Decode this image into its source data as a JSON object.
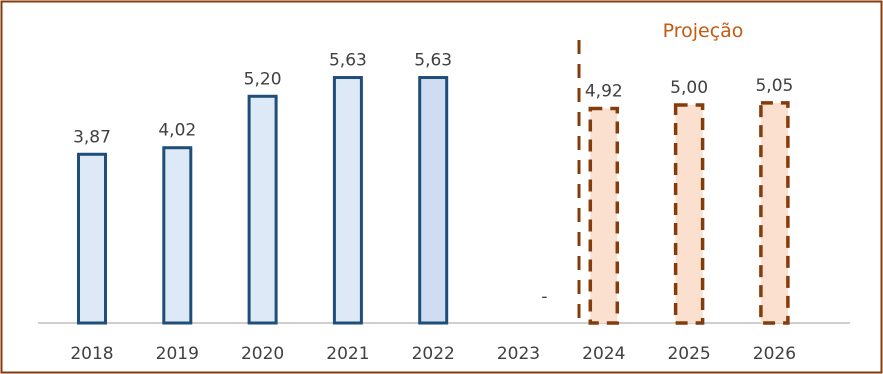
{
  "chart_data": {
    "type": "bar",
    "categories": [
      "2018",
      "2019",
      "2020",
      "2021",
      "2022",
      "2023",
      "2024",
      "2025",
      "2026"
    ],
    "values": [
      3.87,
      4.02,
      5.2,
      5.63,
      5.63,
      null,
      4.92,
      5.0,
      5.05
    ],
    "value_labels": [
      "3,87",
      "4,02",
      "5,20",
      "5,63",
      "5,63",
      "-",
      "4,92",
      "5,00",
      "5,05"
    ],
    "projected": [
      false,
      false,
      false,
      false,
      false,
      false,
      true,
      true,
      true
    ],
    "projection_label": "Projeção",
    "ylim": [
      0,
      6
    ],
    "grid": false,
    "colors": {
      "actual_fill": "#dde9f6",
      "actual_fill_latest": "#cfdcf1",
      "actual_stroke": "#1f4e79",
      "projected_fill": "#fbe0cf",
      "projected_stroke": "#843c0c",
      "projection_text": "#c55a11",
      "frame": "#843c0c",
      "baseline": "#bfbfbf"
    }
  }
}
